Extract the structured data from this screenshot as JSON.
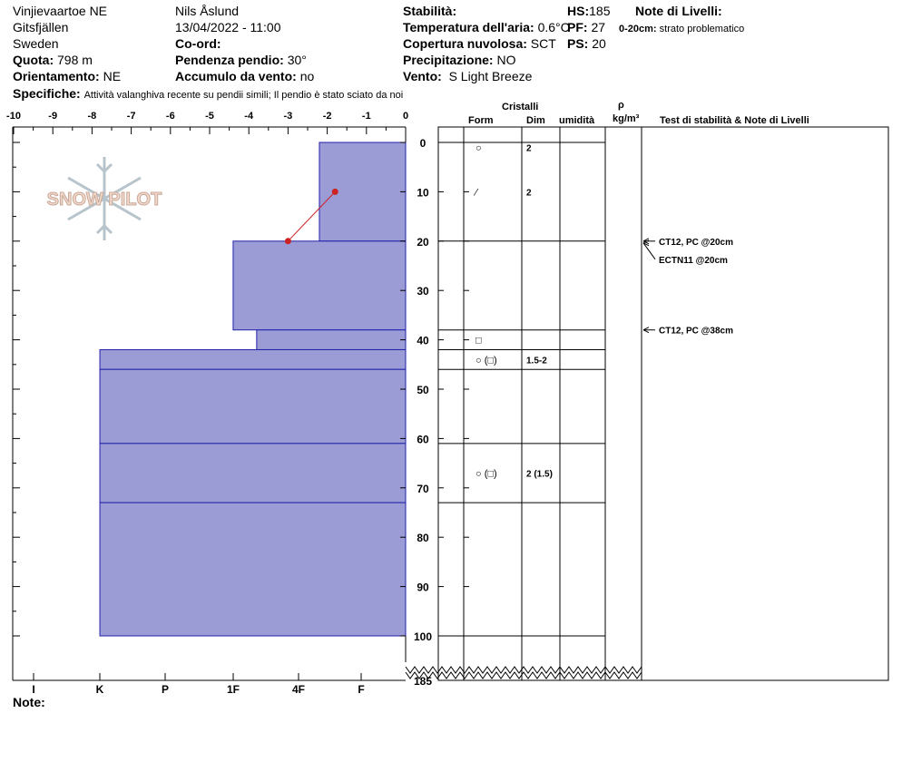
{
  "header": {
    "location": "Vinjievaartoe NE",
    "range": "Gitsfjällen",
    "country": "Sweden",
    "quota_label": "Quota:",
    "quota_value": "798 m",
    "orient_label": "Orientamento:",
    "orient_value": "NE",
    "observer": "Nils Åslund",
    "datetime": "13/04/2022 - 11:00",
    "coord_label": "Co-ord:",
    "slope_label": "Pendenza pendio:",
    "slope_value": "30°",
    "wind_load_label": "Accumulo da vento:",
    "wind_load_value": "no",
    "stability_label": "Stabilità:",
    "air_temp_label": "Temperatura dell'aria:",
    "air_temp_value": "0.6°C",
    "cloud_label": "Copertura nuvolosa:",
    "cloud_value": "SCT",
    "precip_label": "Precipitazione:",
    "precip_value": "NO",
    "wind_label": "Vento:",
    "wind_value": "S Light Breeze",
    "hs_label": "HS:",
    "hs_value": "185",
    "pf_label": "PF:",
    "pf_value": "27",
    "ps_label": "PS:",
    "ps_value": "20",
    "notes_label": "Note di Livelli:",
    "notes_depth": "0-20cm:",
    "notes_text": "strato problematico",
    "specifics_label": "Specifiche:",
    "specifics_text": "Attività valanghiva recente su pendii simili;  Il pendio è stato sciato da noi"
  },
  "logo_text": "SNOW PILOT",
  "note_label": "Note:",
  "columns": {
    "cristalli": "Cristalli",
    "form": "Form",
    "dim": "Dim",
    "umidita": "umidità",
    "rho": "ρ",
    "rho_unit": "kg/m³",
    "tests": "Test di stabilità & Note di Livelli"
  },
  "colors": {
    "layer_fill": "#9b9bd6",
    "layer_stroke": "#2222aa",
    "temp_line": "#cc2222"
  },
  "chart_data": {
    "type": "bar",
    "title": "",
    "xlabel": "",
    "ylabel": "",
    "temp_axis_ticks": [
      "-10",
      "-9",
      "-8",
      "-7",
      "-6",
      "-5",
      "-4",
      "-3",
      "-2",
      "-1",
      "0"
    ],
    "temp_range": [
      -10,
      0
    ],
    "hardness_ticks": [
      "I",
      "K",
      "P",
      "1F",
      "4F",
      "F"
    ],
    "depth_ticks": [
      "0",
      "10",
      "20",
      "30",
      "40",
      "50",
      "60",
      "70",
      "80",
      "90",
      "100",
      "185"
    ],
    "depth_range_cm": [
      0,
      100
    ],
    "total_depth_cm": 185,
    "layers": [
      {
        "top": 0,
        "bottom": 20,
        "hardness_value": 2.2
      },
      {
        "top": 20,
        "bottom": 38,
        "hardness_value": 4.4
      },
      {
        "top": 38,
        "bottom": 42,
        "hardness_value": 3.8
      },
      {
        "top": 42,
        "bottom": 46,
        "hardness_value": 7.8
      },
      {
        "top": 46,
        "bottom": 61,
        "hardness_value": 7.8
      },
      {
        "top": 61,
        "bottom": 73,
        "hardness_value": 7.8
      },
      {
        "top": 73,
        "bottom": 100,
        "hardness_value": 7.8
      }
    ],
    "temperature_profile": [
      {
        "depth": 10,
        "temp": -1.8
      },
      {
        "depth": 20,
        "temp": -3.0
      }
    ],
    "crystals": [
      {
        "depth": 1,
        "form": "○",
        "size": "2"
      },
      {
        "depth": 10,
        "form": "⁄",
        "size": "2"
      },
      {
        "depth": 40,
        "form": "□",
        "size": ""
      },
      {
        "depth": 44,
        "form": "○ (□)",
        "size": "1.5-2"
      },
      {
        "depth": 67,
        "form": "○ (□)",
        "size": "2 (1.5)"
      }
    ],
    "stability_tests": [
      {
        "depth": 20,
        "label": "CT12, PC @20cm"
      },
      {
        "depth": 20,
        "label": "ECTN11 @20cm"
      },
      {
        "depth": 38,
        "label": "CT12, PC @38cm"
      }
    ]
  }
}
